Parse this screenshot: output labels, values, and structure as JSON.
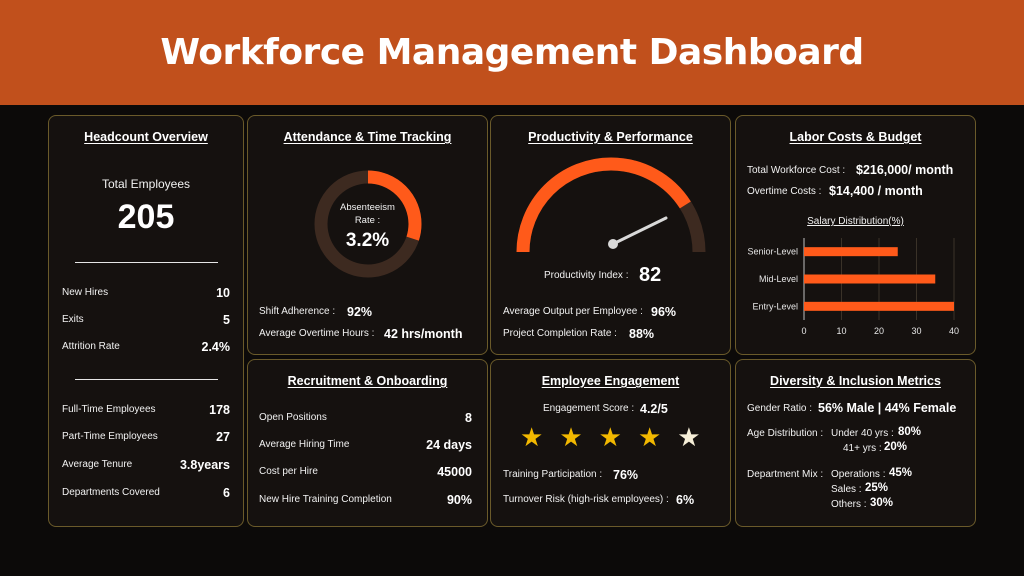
{
  "title": "Workforce Management Dashboard",
  "colors": {
    "banner": "#c1501c",
    "accent": "#ff5a1a",
    "track": "#3d2a20",
    "star": "#f2b800",
    "border": "#6a5a2a"
  },
  "headcount": {
    "title": "Headcount Overview",
    "total_label": "Total Employees",
    "total_value": "205",
    "rows_a": [
      {
        "label": "New Hires",
        "value": "10"
      },
      {
        "label": "Exits",
        "value": "5"
      },
      {
        "label": "Attrition Rate",
        "value": "2.4%"
      }
    ],
    "rows_b": [
      {
        "label": "Full-Time Employees",
        "value": "178"
      },
      {
        "label": "Part-Time Employees",
        "value": "27"
      },
      {
        "label": "Average Tenure",
        "value": "3.8years"
      },
      {
        "label": "Departments Covered",
        "value": "6"
      }
    ]
  },
  "attendance": {
    "title": "Attendance & Time Tracking",
    "donut_label_line1": "Absenteeism",
    "donut_label_line2": "Rate :",
    "donut_value": "3.2%",
    "donut_fill_fraction": 0.3,
    "shift_label": "Shift Adherence :",
    "shift_value": "92%",
    "overtime_label": "Average Overtime Hours :",
    "overtime_value": "42 hrs/month"
  },
  "productivity": {
    "title": "Productivity & Performance",
    "gauge_fraction": 0.82,
    "index_label": "Productivity Index :",
    "index_value": "82",
    "output_label": "Average Output per Employee :",
    "output_value": "96%",
    "completion_label": "Project Completion Rate :",
    "completion_value": "88%"
  },
  "labor": {
    "title": "Labor Costs & Budget",
    "total_label": "Total Workforce Cost :",
    "total_value": "$216,000/ month",
    "overtime_label": "Overtime Costs :",
    "overtime_value": "$14,400 / month",
    "chart_title": "Salary Distribution(%)"
  },
  "chart_data": {
    "type": "bar",
    "orientation": "horizontal",
    "title": "Salary Distribution(%)",
    "categories": [
      "Senior-Level",
      "Mid-Level",
      "Entry-Level"
    ],
    "values": [
      25,
      35,
      40
    ],
    "xlim": [
      0,
      40
    ],
    "xticks": [
      "0",
      "10",
      "20",
      "30",
      "40"
    ],
    "grid": true
  },
  "recruitment": {
    "title": "Recruitment & Onboarding",
    "rows": [
      {
        "label": "Open Positions",
        "value": "8"
      },
      {
        "label": "Average Hiring Time",
        "value": "24 days"
      },
      {
        "label": "Cost per Hire",
        "value": "45000"
      },
      {
        "label": "New Hire Training Completion",
        "value": "90%"
      }
    ]
  },
  "engagement": {
    "title": "Employee Engagement",
    "score_label": "Engagement Score :",
    "score_value": "4.2/5",
    "rating": 4.2,
    "training_label": "Training Participation :",
    "training_value": "76%",
    "turnover_label": "Turnover Risk (high-risk employees) :",
    "turnover_value": "6%"
  },
  "diversity": {
    "title": "Diversity & Inclusion Metrics",
    "gender_label": "Gender Ratio :",
    "gender_value": "56% Male | 44% Female",
    "age_label": "Age Distribution :",
    "age_under_label": "Under 40 yrs :",
    "age_under_value": "80%",
    "age_over_label": "41+ yrs :",
    "age_over_value": "20%",
    "dept_label": "Department Mix :",
    "dept_ops_label": "Operations :",
    "dept_ops_value": "45%",
    "dept_sales_label": "Sales :",
    "dept_sales_value": "25%",
    "dept_others_label": "Others :",
    "dept_others_value": "30%"
  }
}
